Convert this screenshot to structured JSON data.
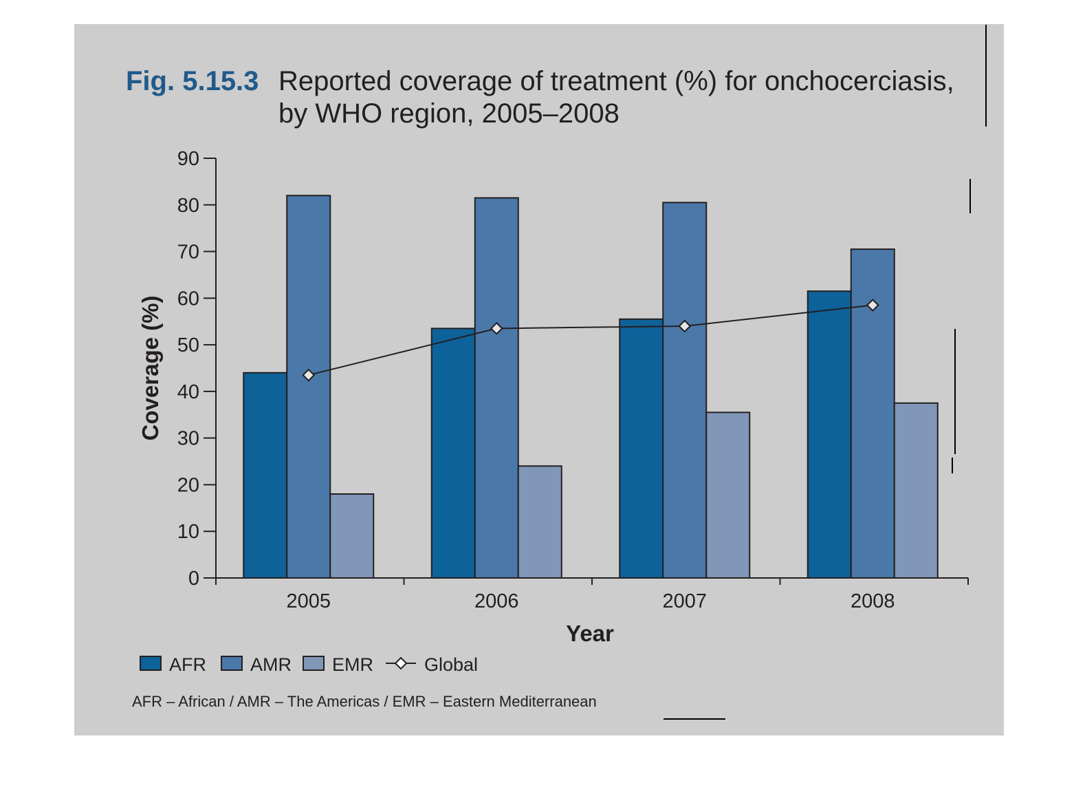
{
  "figure": {
    "number": "Fig. 5.15.3",
    "title_line1": "Reported coverage of treatment (%) for onchocerciasis,",
    "title_line2": "by WHO region, 2005–2008"
  },
  "footnote": "AFR – African / AMR – The Americas / EMR – Eastern Mediterranean",
  "colors": {
    "AFR": "#0e629a",
    "AMR": "#4a78a9",
    "EMR": "#8097b8",
    "panel": "#cdcdcd",
    "title_number": "#1f5a8a"
  },
  "chart_data": {
    "type": "bar",
    "categories": [
      "2005",
      "2006",
      "2007",
      "2008"
    ],
    "series": [
      {
        "name": "AFR",
        "values": [
          44,
          53.5,
          55.5,
          61.5
        ]
      },
      {
        "name": "AMR",
        "values": [
          82,
          81.5,
          80.5,
          70.5
        ]
      },
      {
        "name": "EMR",
        "values": [
          18,
          24,
          35.5,
          37.5
        ]
      }
    ],
    "line_series": {
      "name": "Global",
      "values": [
        43.5,
        53.5,
        54,
        58.5
      ],
      "marker": "diamond"
    },
    "xlabel": "Year",
    "ylabel": "Coverage (%)",
    "ylim": [
      0,
      90
    ],
    "yticks": [
      0,
      10,
      20,
      30,
      40,
      50,
      60,
      70,
      80,
      90
    ],
    "grid": false,
    "legend": [
      "AFR",
      "AMR",
      "EMR",
      "Global"
    ],
    "legend_position": "bottom-left"
  }
}
